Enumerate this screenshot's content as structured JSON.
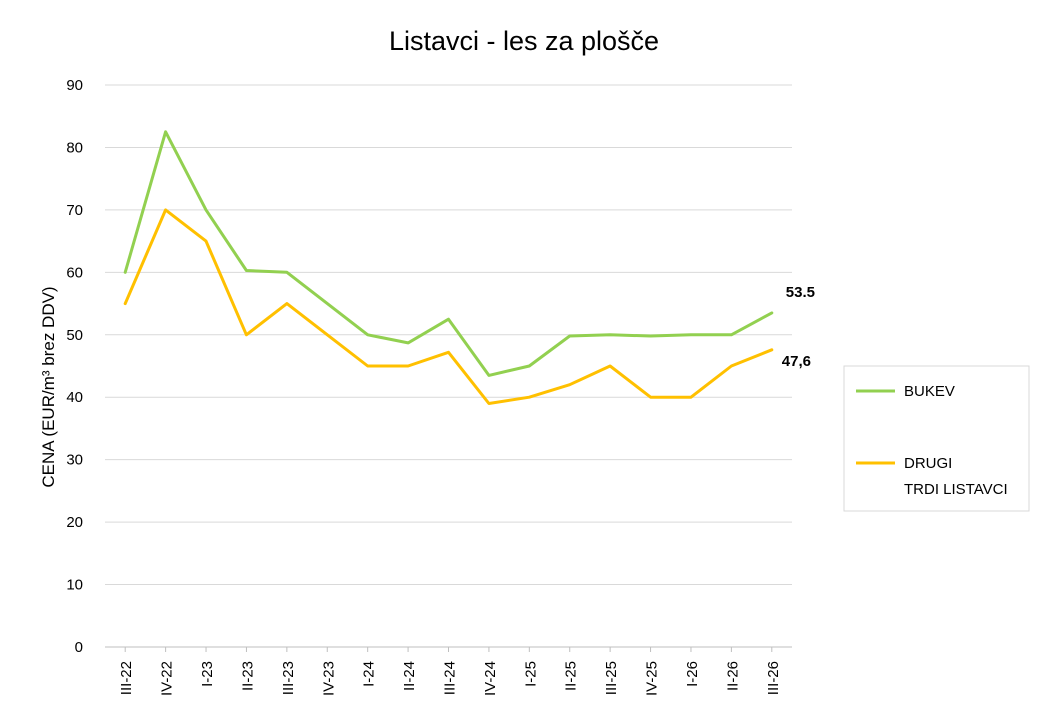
{
  "chart_data": {
    "type": "line",
    "title": "Listavci - les za plošče",
    "ylabel": "CENA (EUR/m³ brez DDV)",
    "xlabel": "",
    "ylim": [
      0,
      90
    ],
    "yticks": [
      "0",
      "10",
      "20",
      "30",
      "40",
      "50",
      "60",
      "70",
      "80",
      "90"
    ],
    "grid": true,
    "legend_position": "right",
    "categories": [
      "III-22",
      "IV-22",
      "I-23",
      "II-23",
      "III-23",
      "IV-23",
      "I-24",
      "II-24",
      "III-24",
      "IV-24",
      "I-25",
      "II-25",
      "III-25",
      "IV-25",
      "I-26",
      "II-26",
      "III-26"
    ],
    "series": [
      {
        "name": "BUKEV",
        "color": "#92d050",
        "values": [
          60,
          82.5,
          70,
          60.3,
          60,
          55,
          50,
          48.7,
          52.5,
          43.5,
          45,
          49.8,
          50,
          49.8,
          50,
          50,
          53.5
        ],
        "end_label": "53.5"
      },
      {
        "name": "DRUGI TRDI LISTAVCI",
        "name_lines": [
          "DRUGI",
          "TRDI LISTAVCI"
        ],
        "color": "#ffc000",
        "values": [
          55,
          70,
          65,
          50,
          55,
          50,
          45,
          45,
          47.2,
          39,
          40,
          42,
          45,
          40,
          40,
          45,
          47.6
        ],
        "end_label": "47,6"
      }
    ]
  }
}
